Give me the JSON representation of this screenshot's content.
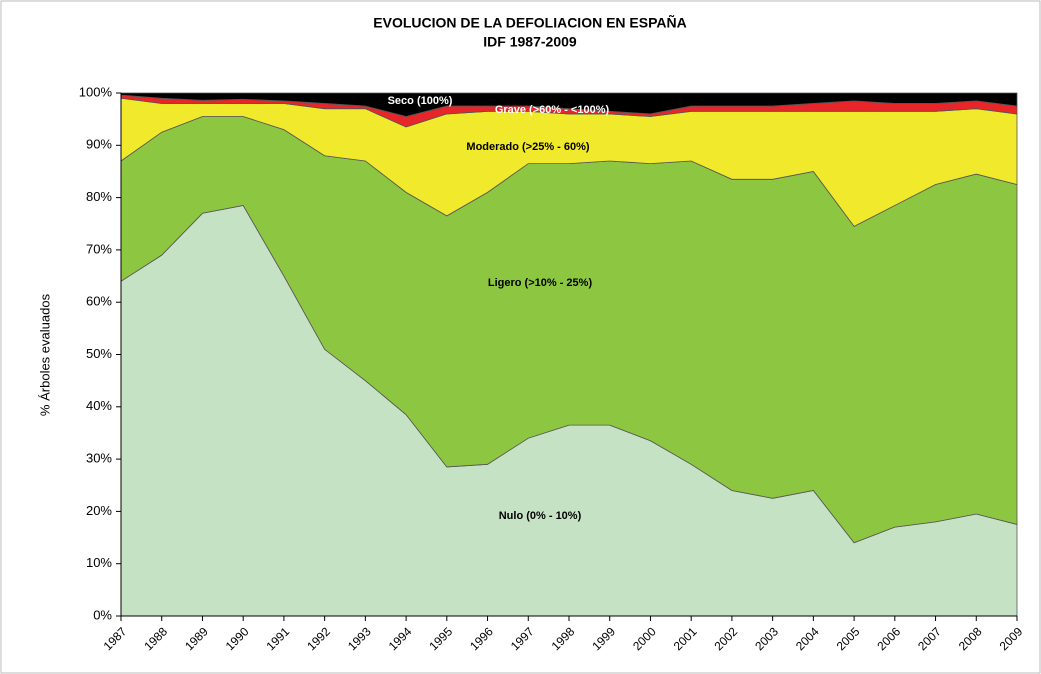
{
  "chart_data": {
    "type": "stacked_area",
    "title": "EVOLUCION DE LA DEFOLIACION EN ESPAÑA",
    "subtitle": "IDF 1987-2009",
    "y_label": "% Árboles evaluados",
    "categories": [
      "1987",
      "1988",
      "1989",
      "1990",
      "1991",
      "1992",
      "1993",
      "1994",
      "1995",
      "1996",
      "1997",
      "1998",
      "1999",
      "2000",
      "2001",
      "2002",
      "2003",
      "2004",
      "2005",
      "2006",
      "2007",
      "2008",
      "2009"
    ],
    "series": [
      {
        "name": "Nulo (0% - 10%)",
        "color": "#c6e2c4",
        "values": [
          64,
          69,
          77,
          78.5,
          65,
          51,
          45,
          38.5,
          28.5,
          29,
          34,
          36.5,
          36.5,
          33.5,
          29,
          24,
          22.5,
          24,
          14,
          17,
          18,
          19.5,
          17.5
        ]
      },
      {
        "name": "Ligero (>10% - 25%)",
        "color": "#8dc641",
        "values": [
          23,
          23.5,
          18.5,
          17,
          28,
          37,
          42,
          42.5,
          48,
          52,
          52.5,
          50,
          50.5,
          53,
          58,
          59.5,
          61,
          61,
          60.5,
          61.5,
          64.5,
          65,
          65
        ]
      },
      {
        "name": "Moderado (>25% - 60%)",
        "color": "#f1e92b",
        "values": [
          12,
          5.5,
          2.5,
          2.5,
          5,
          9,
          10,
          12.5,
          19.5,
          15.5,
          10,
          9.5,
          9,
          9,
          9.5,
          13,
          13,
          11.5,
          22,
          18,
          14,
          12.5,
          13.5
        ]
      },
      {
        "name": "Grave (>60% - <100%)",
        "color": "#e8262a",
        "values": [
          0.6,
          1,
          0.6,
          0.8,
          0.5,
          1,
          0.5,
          2,
          1.5,
          1,
          1,
          1,
          0.5,
          0.5,
          1,
          1,
          1,
          1.5,
          2,
          1.5,
          1.5,
          1.5,
          1.5
        ]
      },
      {
        "name": "Seco (100%)",
        "color": "#000000",
        "values": [
          0.4,
          1,
          1.4,
          1.2,
          1.5,
          2,
          2.5,
          4.5,
          2.5,
          2.5,
          2.5,
          3,
          3.5,
          4,
          2.5,
          2.5,
          2.5,
          2,
          1.5,
          2,
          2,
          1.5,
          2.5
        ]
      }
    ],
    "ylim": [
      0,
      100
    ],
    "yticks": [
      {
        "value": 0,
        "label": "0%"
      },
      {
        "value": 10,
        "label": "10%"
      },
      {
        "value": 20,
        "label": "20%"
      },
      {
        "value": 30,
        "label": "30%"
      },
      {
        "value": 40,
        "label": "40%"
      },
      {
        "value": 50,
        "label": "50%"
      },
      {
        "value": 60,
        "label": "60%"
      },
      {
        "value": 70,
        "label": "70%"
      },
      {
        "value": 80,
        "label": "80%"
      },
      {
        "value": 90,
        "label": "90%"
      },
      {
        "value": 100,
        "label": "100%"
      }
    ]
  }
}
